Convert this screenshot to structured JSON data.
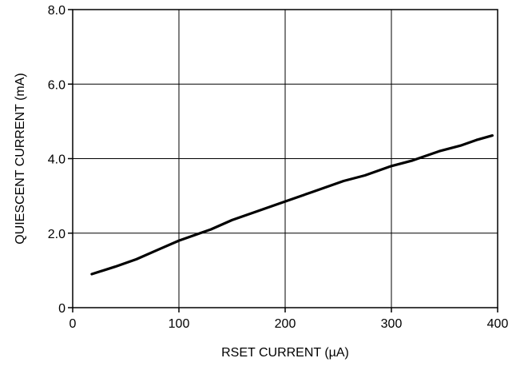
{
  "chart_data": {
    "type": "line",
    "xlabel": "RSET CURRENT (µA)",
    "ylabel": "QUIESCENT CURRENT (mA)",
    "xlim": [
      0,
      400
    ],
    "ylim": [
      0,
      8
    ],
    "x_ticks": [
      0,
      100,
      200,
      300,
      400
    ],
    "x_tick_labels": [
      "0",
      "100",
      "200",
      "300",
      "400"
    ],
    "y_ticks": [
      0,
      2,
      4,
      6,
      8
    ],
    "y_tick_labels": [
      "0",
      "2.0",
      "4.0",
      "6.0",
      "8.0"
    ],
    "grid": true,
    "series": [
      {
        "x": [
          18,
          40,
          60,
          80,
          100,
          115,
          130,
          150,
          175,
          200,
          225,
          255,
          275,
          300,
          320,
          345,
          365,
          380,
          395
        ],
        "y": [
          0.9,
          1.1,
          1.3,
          1.55,
          1.8,
          1.95,
          2.1,
          2.35,
          2.6,
          2.85,
          3.1,
          3.4,
          3.55,
          3.8,
          3.95,
          4.2,
          4.35,
          4.5,
          4.62
        ]
      }
    ]
  }
}
